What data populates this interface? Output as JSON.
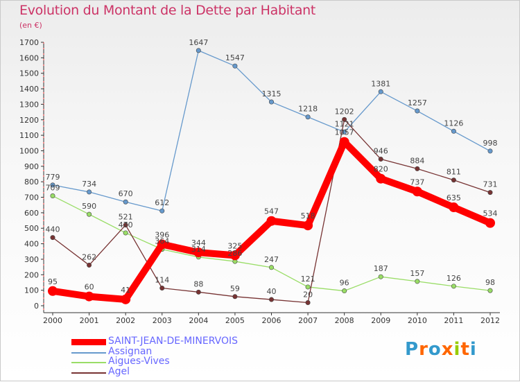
{
  "header": {
    "title": "Evolution du Montant de la Dette par Habitant",
    "subtitle": "(en €)"
  },
  "brand": {
    "text": "Proxiti",
    "letter_colors": [
      "#3399cc",
      "#ff6600",
      "#3399cc",
      "#ff6600",
      "#99cc00",
      "#ff6600",
      "#3399cc"
    ]
  },
  "chart_data": {
    "type": "line",
    "title": "Evolution du Montant de la Dette par Habitant",
    "subtitle": "(en €)",
    "x": [
      "2000",
      "2001",
      "2002",
      "2003",
      "2004",
      "2005",
      "2006",
      "2007",
      "2008",
      "2009",
      "2010",
      "2011",
      "2012"
    ],
    "ylim": [
      0,
      1700
    ],
    "yticks": [
      0,
      100,
      200,
      300,
      400,
      500,
      600,
      700,
      800,
      900,
      1000,
      1100,
      1200,
      1300,
      1400,
      1500,
      1600,
      1700
    ],
    "grid": false,
    "legend_position": "bottom-left",
    "series": [
      {
        "name": "SAINT-JEAN-DE-MINERVOIS",
        "color": "#ff0000",
        "values": [
          95,
          60,
          41,
          396,
          344,
          325,
          547,
          518,
          1057,
          820,
          737,
          635,
          534
        ]
      },
      {
        "name": "Assignan",
        "color": "#6699cc",
        "values": [
          779,
          734,
          670,
          612,
          1647,
          1547,
          1315,
          1218,
          1121,
          1381,
          1257,
          1126,
          998
        ]
      },
      {
        "name": "Aigues-Vives",
        "color": "#99dd66",
        "values": [
          709,
          590,
          470,
          364,
          314,
          286,
          247,
          121,
          96,
          187,
          157,
          126,
          98
        ]
      },
      {
        "name": "Agel",
        "color": "#773333",
        "values": [
          440,
          262,
          521,
          114,
          88,
          59,
          40,
          20,
          1202,
          946,
          884,
          811,
          731
        ]
      }
    ]
  }
}
